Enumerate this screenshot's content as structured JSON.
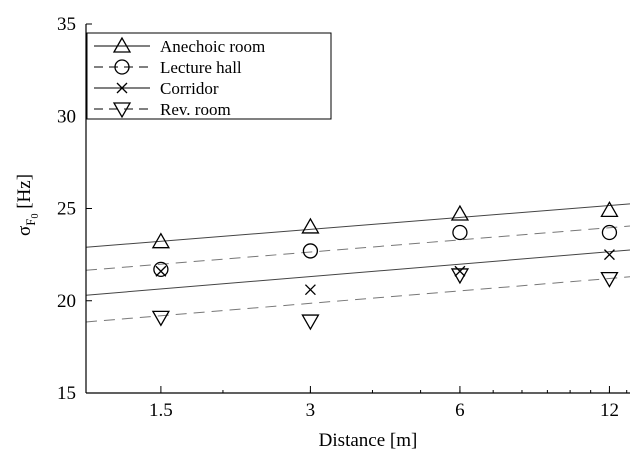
{
  "chart_data": {
    "type": "scatter",
    "xlabel": "Distance [m]",
    "ylabel_main": "σ",
    "ylabel_sub": "F",
    "ylabel_subsub": "0",
    "ylabel_unit": "[Hz]",
    "xscale": "log",
    "xlim": [
      1.06,
      13.2
    ],
    "ylim": [
      15,
      35
    ],
    "xticks": [
      1.5,
      3,
      6,
      12
    ],
    "xtick_labels": [
      "1.5",
      "3",
      "6",
      "12"
    ],
    "yticks": [
      15,
      20,
      25,
      30,
      35
    ],
    "ytick_labels": [
      "15",
      "20",
      "25",
      "30",
      "35"
    ],
    "grid": false,
    "legend_position": "top-left",
    "series": [
      {
        "name": "Anechoic room",
        "marker": "triangle-up",
        "line_style": "solid",
        "color": "#000000",
        "points": [
          {
            "x": 1.5,
            "y": 23.2
          },
          {
            "x": 3,
            "y": 24.0
          },
          {
            "x": 6,
            "y": 24.7
          },
          {
            "x": 12,
            "y": 24.9
          }
        ],
        "fit": [
          {
            "x": 1.06,
            "y": 22.9
          },
          {
            "x": 13.2,
            "y": 25.25
          }
        ]
      },
      {
        "name": "Lecture hall",
        "marker": "circle",
        "line_style": "dashed",
        "color": "#000000",
        "points": [
          {
            "x": 1.5,
            "y": 21.7
          },
          {
            "x": 3,
            "y": 22.7
          },
          {
            "x": 6,
            "y": 23.7
          },
          {
            "x": 12,
            "y": 23.7
          }
        ],
        "fit": [
          {
            "x": 1.06,
            "y": 21.65
          },
          {
            "x": 13.2,
            "y": 24.05
          }
        ]
      },
      {
        "name": "Corridor",
        "marker": "x",
        "line_style": "solid",
        "color": "#000000",
        "points": [
          {
            "x": 1.5,
            "y": 21.6
          },
          {
            "x": 3,
            "y": 20.6
          },
          {
            "x": 6,
            "y": 21.6
          },
          {
            "x": 12,
            "y": 22.5
          }
        ],
        "fit": [
          {
            "x": 1.06,
            "y": 20.3
          },
          {
            "x": 13.2,
            "y": 22.75
          }
        ]
      },
      {
        "name": "Rev. room",
        "marker": "triangle-down",
        "line_style": "dashed",
        "color": "#000000",
        "points": [
          {
            "x": 1.5,
            "y": 19.1
          },
          {
            "x": 3,
            "y": 18.9
          },
          {
            "x": 6,
            "y": 21.4
          },
          {
            "x": 12,
            "y": 21.2
          }
        ],
        "fit": [
          {
            "x": 1.06,
            "y": 18.85
          },
          {
            "x": 13.2,
            "y": 21.3
          }
        ]
      }
    ]
  }
}
